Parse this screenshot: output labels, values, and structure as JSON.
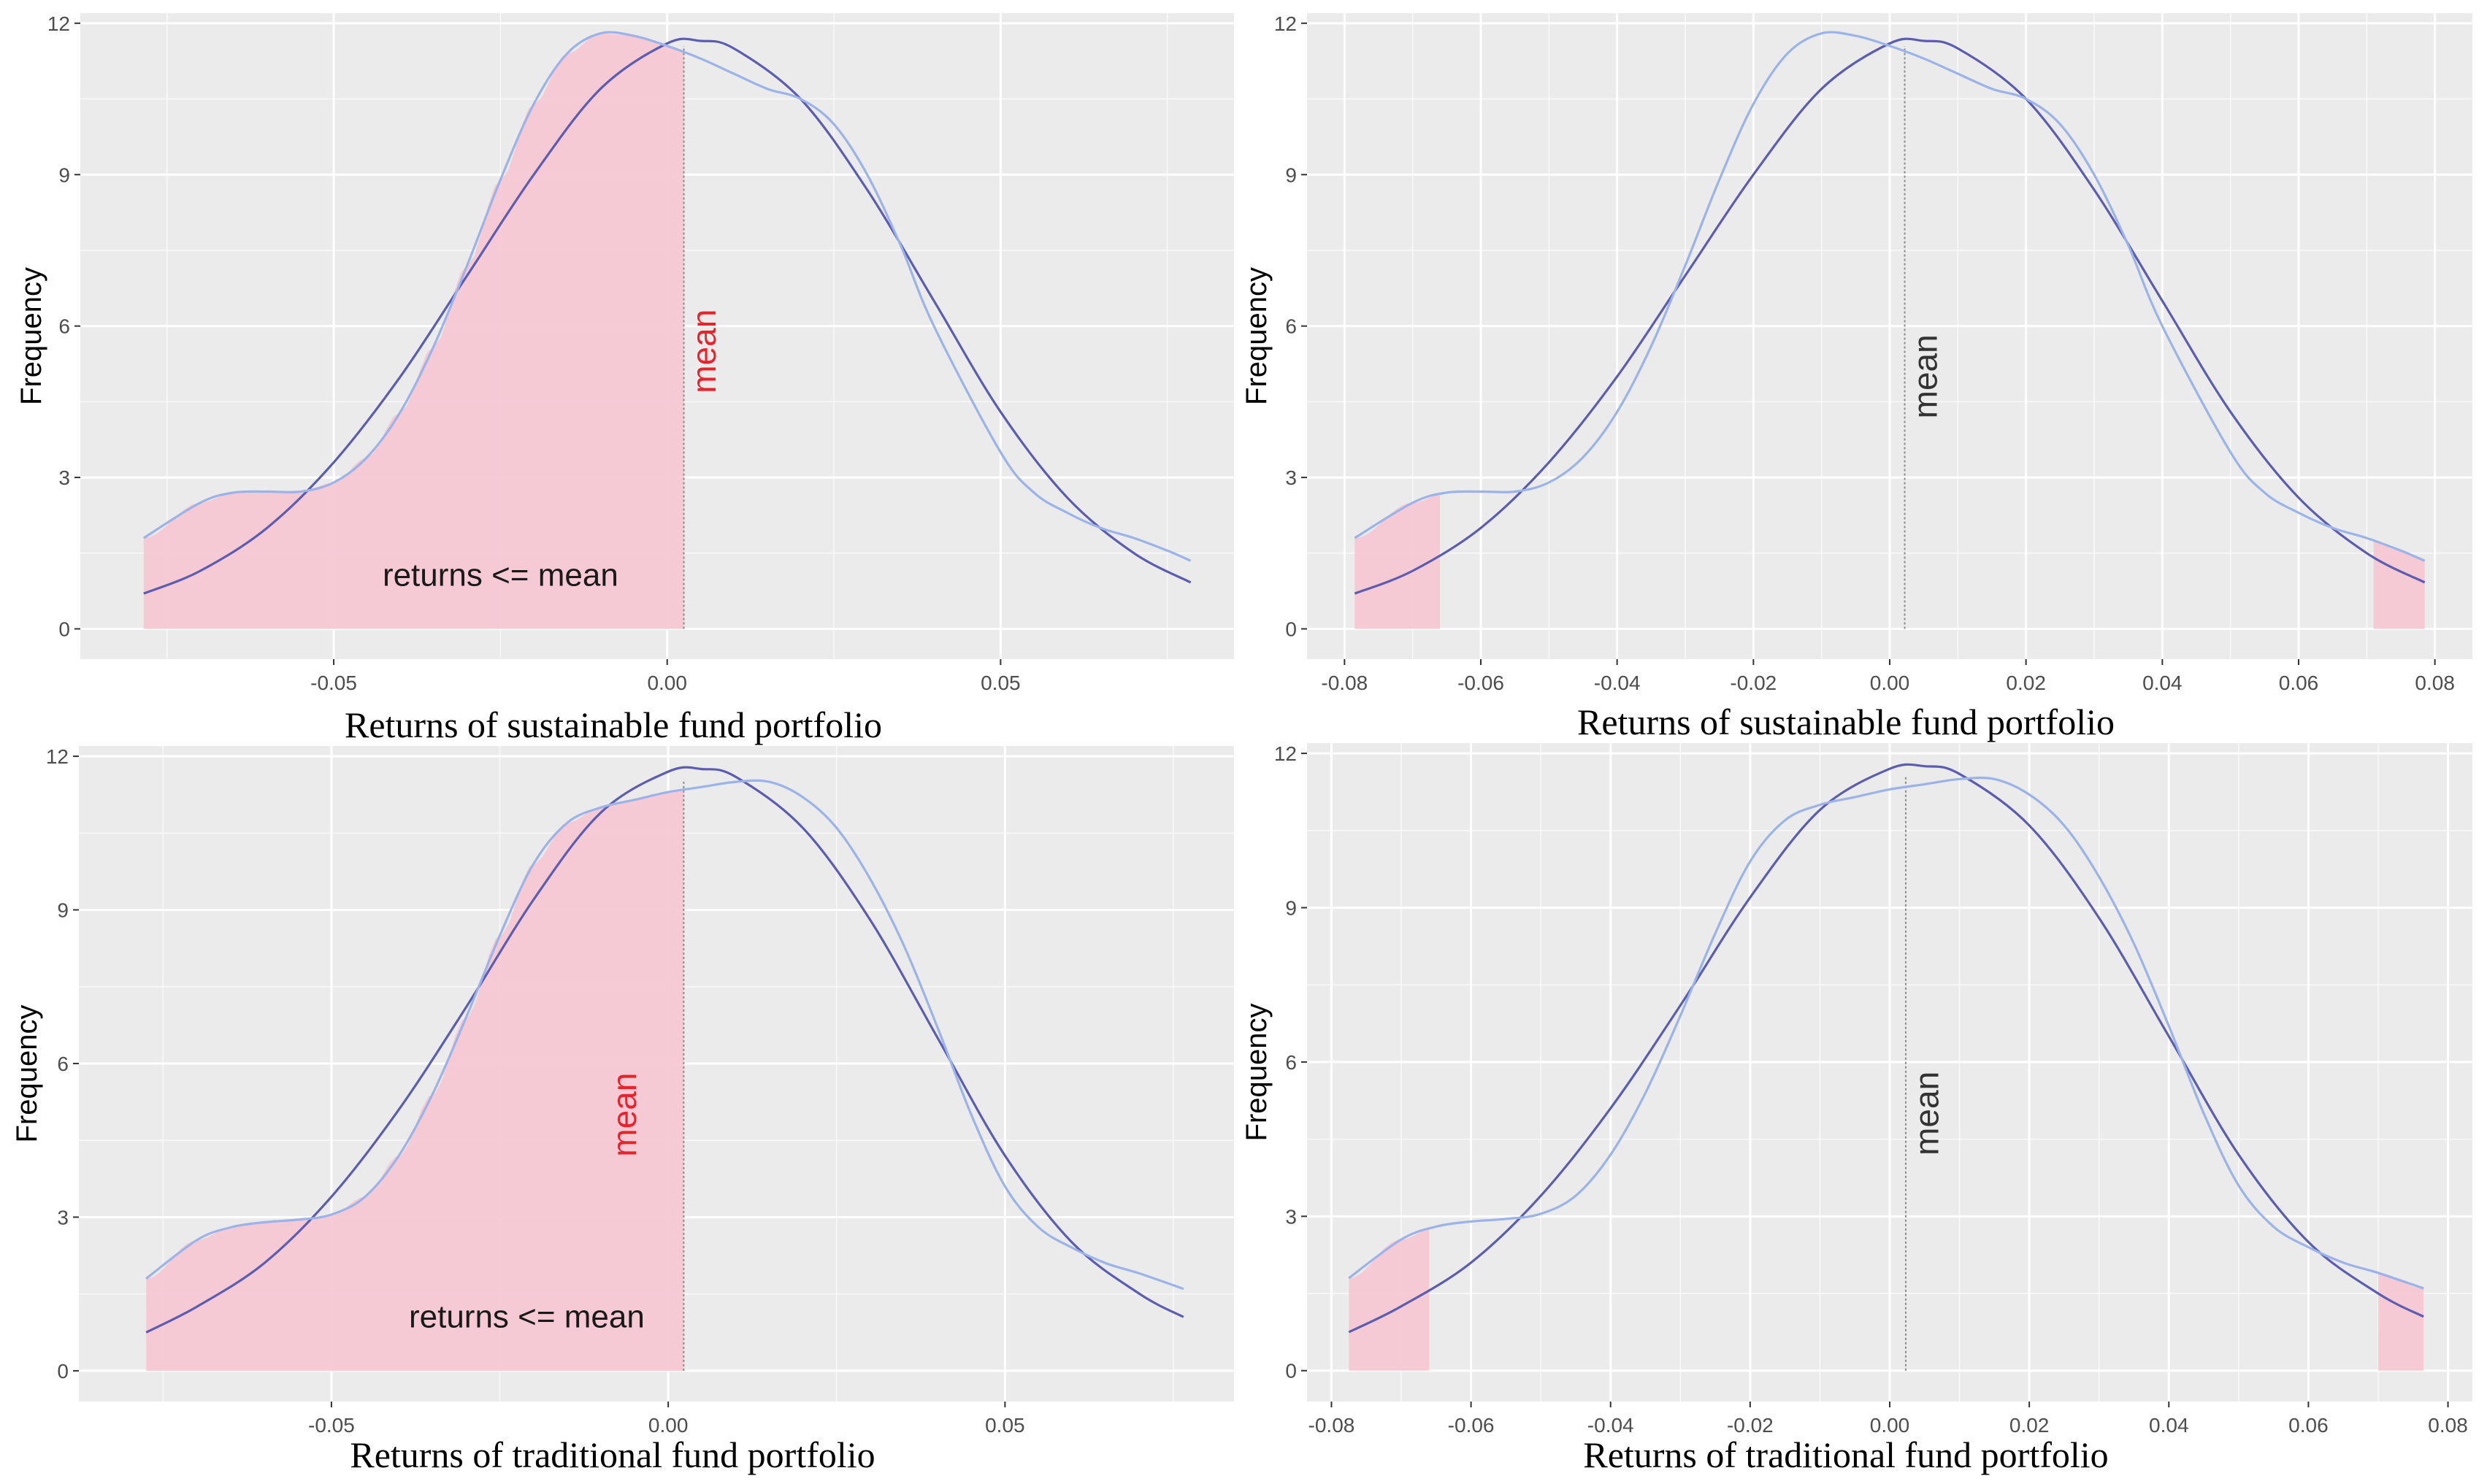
{
  "colors": {
    "panel_bg": "#ebebeb",
    "grid": "#ffffff",
    "shade": "#f7c8d4",
    "curve_normal": "#5c5cb0",
    "curve_density": "#9bb3e8",
    "mean_red": "#e8232a",
    "mean_dark": "#333333",
    "mean_line": "#8a8a8a"
  },
  "chart_data": [
    {
      "type": "area",
      "panel": "top-left",
      "ylabel": "Frequency",
      "xlabel": "Returns of sustainable fund portfolio",
      "xlim": [
        -0.088,
        0.085
      ],
      "ylim": [
        -0.6,
        12.2
      ],
      "xticks": [
        -0.05,
        0.0,
        0.05
      ],
      "xtick_labels": [
        "-0.05",
        "0.00",
        "0.05"
      ],
      "yticks": [
        0,
        3,
        6,
        9,
        12
      ],
      "ytick_labels": [
        "0",
        "3",
        "6",
        "9",
        "12"
      ],
      "mean": 0.0025,
      "mean_label": "mean",
      "mean_label_color": "red",
      "mean_label_pos": [
        0.0055,
        5.5
      ],
      "region_label": "returns <= mean",
      "region_label_pos": [
        -0.025,
        0.85
      ],
      "shade": [
        {
          "from": -0.0785,
          "to": 0.0025
        }
      ],
      "series": [
        {
          "name": "normal",
          "x": [
            -0.0785,
            -0.07,
            -0.06,
            -0.05,
            -0.04,
            -0.03,
            -0.02,
            -0.01,
            0.0,
            0.005,
            0.01,
            0.02,
            0.03,
            0.04,
            0.05,
            0.06,
            0.07,
            0.0785
          ],
          "y": [
            0.7,
            1.15,
            2.0,
            3.3,
            5.0,
            7.0,
            9.0,
            10.7,
            11.6,
            11.65,
            11.5,
            10.5,
            8.7,
            6.5,
            4.3,
            2.6,
            1.5,
            0.92
          ]
        },
        {
          "name": "density",
          "x": [
            -0.0785,
            -0.07,
            -0.065,
            -0.06,
            -0.055,
            -0.05,
            -0.045,
            -0.04,
            -0.035,
            -0.03,
            -0.025,
            -0.02,
            -0.015,
            -0.01,
            -0.005,
            0.0,
            0.005,
            0.01,
            0.015,
            0.02,
            0.025,
            0.03,
            0.035,
            0.04,
            0.05,
            0.055,
            0.06,
            0.065,
            0.07,
            0.075,
            0.0785
          ],
          "y": [
            1.8,
            2.5,
            2.7,
            2.72,
            2.72,
            2.9,
            3.4,
            4.3,
            5.6,
            7.2,
            8.9,
            10.4,
            11.4,
            11.8,
            11.75,
            11.55,
            11.3,
            11.0,
            10.7,
            10.5,
            10.0,
            9.0,
            7.6,
            6.0,
            3.5,
            2.7,
            2.3,
            2.0,
            1.8,
            1.55,
            1.35
          ]
        }
      ]
    },
    {
      "type": "area",
      "panel": "top-right",
      "ylabel": "Frequency",
      "xlabel": "Returns of sustainable fund portfolio",
      "xlim": [
        -0.0855,
        0.0855
      ],
      "ylim": [
        -0.6,
        12.2
      ],
      "xticks": [
        -0.08,
        -0.06,
        -0.04,
        -0.02,
        0.0,
        0.02,
        0.04,
        0.06,
        0.08
      ],
      "xtick_labels": [
        "-0.08",
        "-0.06",
        "-0.04",
        "-0.02",
        "0.00",
        "0.02",
        "0.04",
        "0.06",
        "0.08"
      ],
      "yticks": [
        0,
        3,
        6,
        9,
        12
      ],
      "ytick_labels": [
        "0",
        "3",
        "6",
        "9",
        "12"
      ],
      "mean": 0.0022,
      "mean_label": "mean",
      "mean_label_color": "dark",
      "mean_label_pos": [
        0.0052,
        5.0
      ],
      "shade": [
        {
          "from": -0.0785,
          "to": -0.066
        },
        {
          "from": 0.071,
          "to": 0.0785
        }
      ],
      "series": [
        {
          "name": "normal",
          "x": [
            -0.0785,
            -0.07,
            -0.06,
            -0.05,
            -0.04,
            -0.03,
            -0.02,
            -0.01,
            0.0,
            0.005,
            0.01,
            0.02,
            0.03,
            0.04,
            0.05,
            0.06,
            0.07,
            0.0785
          ],
          "y": [
            0.7,
            1.15,
            2.0,
            3.3,
            5.0,
            7.0,
            9.0,
            10.7,
            11.6,
            11.65,
            11.5,
            10.5,
            8.7,
            6.5,
            4.3,
            2.6,
            1.5,
            0.92
          ]
        },
        {
          "name": "density",
          "x": [
            -0.0785,
            -0.07,
            -0.065,
            -0.06,
            -0.055,
            -0.05,
            -0.045,
            -0.04,
            -0.035,
            -0.03,
            -0.025,
            -0.02,
            -0.015,
            -0.01,
            -0.005,
            0.0,
            0.005,
            0.01,
            0.015,
            0.02,
            0.025,
            0.03,
            0.035,
            0.04,
            0.05,
            0.055,
            0.06,
            0.065,
            0.07,
            0.075,
            0.0785
          ],
          "y": [
            1.8,
            2.5,
            2.7,
            2.72,
            2.72,
            2.9,
            3.4,
            4.3,
            5.6,
            7.2,
            8.9,
            10.4,
            11.4,
            11.8,
            11.75,
            11.55,
            11.3,
            11.0,
            10.7,
            10.5,
            10.0,
            9.0,
            7.6,
            6.0,
            3.5,
            2.7,
            2.3,
            2.0,
            1.8,
            1.55,
            1.35
          ]
        }
      ]
    },
    {
      "type": "area",
      "panel": "bottom-left",
      "ylabel": "Frequency",
      "xlabel": "Returns of traditional fund portfolio",
      "xlim": [
        -0.0875,
        0.084
      ],
      "ylim": [
        -0.6,
        12.2
      ],
      "xticks": [
        -0.05,
        0.0,
        0.05
      ],
      "xtick_labels": [
        "-0.05",
        "0.00",
        "0.05"
      ],
      "yticks": [
        0,
        3,
        6,
        9,
        12
      ],
      "ytick_labels": [
        "0",
        "3",
        "6",
        "9",
        "12"
      ],
      "mean": 0.0023,
      "mean_label": "mean",
      "mean_label_color": "red",
      "mean_label_pos": [
        -0.0065,
        5.0
      ],
      "region_label": "returns <= mean",
      "region_label_pos": [
        -0.021,
        0.85
      ],
      "shade": [
        {
          "from": -0.0775,
          "to": 0.0023
        }
      ],
      "series": [
        {
          "name": "normal",
          "x": [
            -0.0775,
            -0.07,
            -0.06,
            -0.05,
            -0.04,
            -0.03,
            -0.02,
            -0.01,
            0.0,
            0.005,
            0.01,
            0.02,
            0.03,
            0.04,
            0.05,
            0.06,
            0.07,
            0.0765
          ],
          "y": [
            0.75,
            1.25,
            2.1,
            3.4,
            5.1,
            7.1,
            9.2,
            10.9,
            11.7,
            11.75,
            11.6,
            10.6,
            8.8,
            6.5,
            4.2,
            2.5,
            1.5,
            1.05
          ]
        },
        {
          "name": "density",
          "x": [
            -0.0775,
            -0.07,
            -0.065,
            -0.06,
            -0.055,
            -0.05,
            -0.045,
            -0.04,
            -0.035,
            -0.03,
            -0.025,
            -0.02,
            -0.015,
            -0.01,
            -0.005,
            0.0,
            0.005,
            0.01,
            0.015,
            0.02,
            0.025,
            0.03,
            0.035,
            0.04,
            0.045,
            0.05,
            0.055,
            0.06,
            0.065,
            0.07,
            0.0765
          ],
          "y": [
            1.8,
            2.55,
            2.8,
            2.9,
            2.95,
            3.05,
            3.4,
            4.2,
            5.4,
            6.9,
            8.5,
            9.9,
            10.7,
            11.0,
            11.15,
            11.3,
            11.4,
            11.5,
            11.5,
            11.2,
            10.6,
            9.6,
            8.3,
            6.7,
            5.0,
            3.6,
            2.8,
            2.4,
            2.1,
            1.9,
            1.6
          ]
        }
      ]
    },
    {
      "type": "area",
      "panel": "bottom-right",
      "ylabel": "Frequency",
      "xlabel": "Returns of traditional fund portfolio",
      "xlim": [
        -0.0835,
        0.0835
      ],
      "ylim": [
        -0.6,
        12.2
      ],
      "xticks": [
        -0.08,
        -0.06,
        -0.04,
        -0.02,
        0.0,
        0.02,
        0.04,
        0.06,
        0.08
      ],
      "xtick_labels": [
        "-0.08",
        "-0.06",
        "-0.04",
        "-0.02",
        "0.00",
        "0.02",
        "0.04",
        "0.06",
        "0.08"
      ],
      "yticks": [
        0,
        3,
        6,
        9,
        12
      ],
      "ytick_labels": [
        "0",
        "3",
        "6",
        "9",
        "12"
      ],
      "mean": 0.0023,
      "mean_label": "mean",
      "mean_label_color": "dark",
      "mean_label_pos": [
        0.0053,
        5.0
      ],
      "shade": [
        {
          "from": -0.0775,
          "to": -0.066
        },
        {
          "from": 0.07,
          "to": 0.0765
        }
      ],
      "series": [
        {
          "name": "normal",
          "x": [
            -0.0775,
            -0.07,
            -0.06,
            -0.05,
            -0.04,
            -0.03,
            -0.02,
            -0.01,
            0.0,
            0.005,
            0.01,
            0.02,
            0.03,
            0.04,
            0.05,
            0.06,
            0.07,
            0.0765
          ],
          "y": [
            0.75,
            1.25,
            2.1,
            3.4,
            5.1,
            7.1,
            9.2,
            10.9,
            11.7,
            11.75,
            11.6,
            10.6,
            8.8,
            6.5,
            4.2,
            2.5,
            1.5,
            1.05
          ]
        },
        {
          "name": "density",
          "x": [
            -0.0775,
            -0.07,
            -0.065,
            -0.06,
            -0.055,
            -0.05,
            -0.045,
            -0.04,
            -0.035,
            -0.03,
            -0.025,
            -0.02,
            -0.015,
            -0.01,
            -0.005,
            0.0,
            0.005,
            0.01,
            0.015,
            0.02,
            0.025,
            0.03,
            0.035,
            0.04,
            0.045,
            0.05,
            0.055,
            0.06,
            0.065,
            0.07,
            0.0765
          ],
          "y": [
            1.8,
            2.55,
            2.8,
            2.9,
            2.95,
            3.05,
            3.4,
            4.2,
            5.4,
            6.9,
            8.5,
            9.9,
            10.7,
            11.0,
            11.15,
            11.3,
            11.4,
            11.5,
            11.5,
            11.2,
            10.6,
            9.6,
            8.3,
            6.7,
            5.0,
            3.6,
            2.8,
            2.4,
            2.1,
            1.9,
            1.6
          ]
        }
      ]
    }
  ]
}
